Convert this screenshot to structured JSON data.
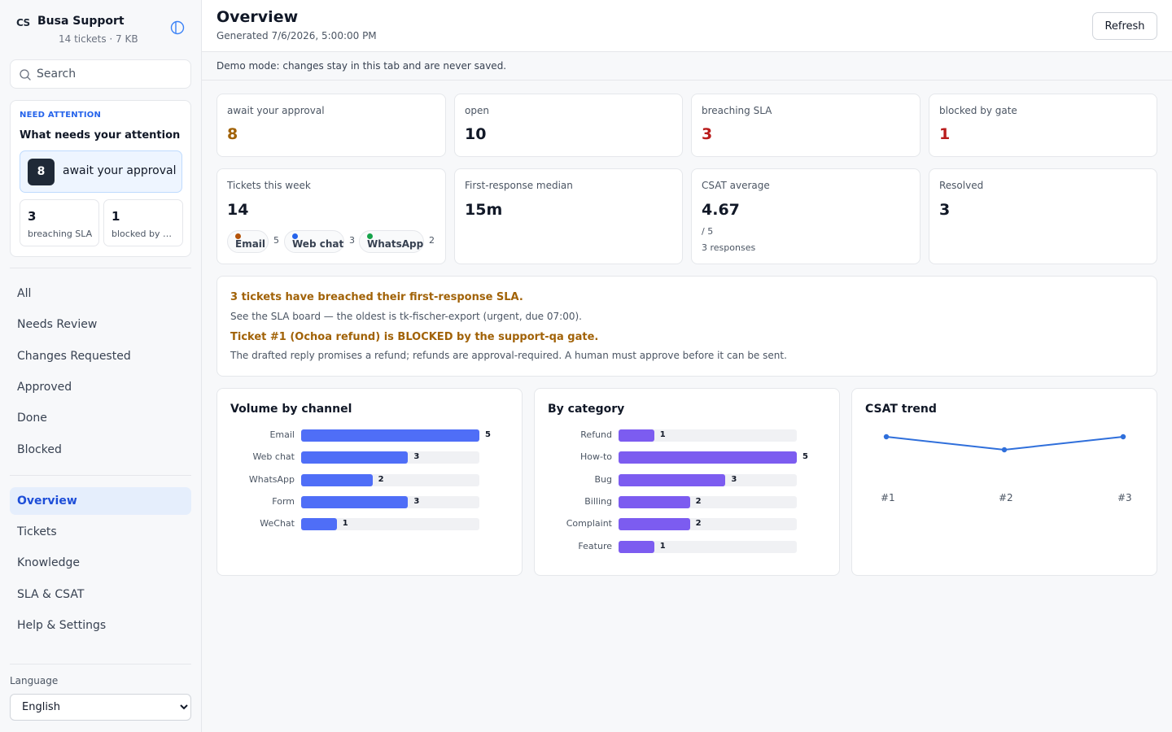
{
  "brand": {
    "logo": "CS",
    "name": "Busa Support",
    "subtitle": "14 tickets · 7 KB"
  },
  "search": {
    "placeholder": "Search"
  },
  "attention": {
    "eyebrow": "NEED ATTENTION",
    "title": "What needs your attention",
    "approval": {
      "count": "8",
      "label": "await your approval"
    },
    "minis": [
      {
        "count": "3",
        "label": "breaching SLA"
      },
      {
        "count": "1",
        "label": "blocked by gate"
      }
    ]
  },
  "nav": {
    "filters": [
      "All",
      "Needs Review",
      "Changes Requested",
      "Approved",
      "Done",
      "Blocked"
    ],
    "pages": [
      "Overview",
      "Tickets",
      "Knowledge",
      "SLA & CSAT",
      "Help & Settings"
    ],
    "active": "Overview"
  },
  "language": {
    "label": "Language",
    "value": "English"
  },
  "header": {
    "title": "Overview",
    "generated": "Generated 7/6/2026, 5:00:00 PM",
    "refresh_label": "Refresh"
  },
  "demo_notice": "Demo mode: changes stay in this tab and are never saved.",
  "stats_top": [
    {
      "label": "await your approval",
      "value": "8",
      "tone": "amber"
    },
    {
      "label": "open",
      "value": "10",
      "tone": "default"
    },
    {
      "label": "breaching SLA",
      "value": "3",
      "tone": "red"
    },
    {
      "label": "blocked by gate",
      "value": "1",
      "tone": "red"
    }
  ],
  "stats_second": {
    "tickets_week": {
      "label": "Tickets this week",
      "value": "14",
      "channels": [
        {
          "name": "Email",
          "count": "5",
          "color": "#b45309"
        },
        {
          "name": "Web chat",
          "count": "3",
          "color": "#2563eb"
        },
        {
          "name": "WhatsApp",
          "count": "2",
          "color": "#16a34a"
        }
      ]
    },
    "first_response": {
      "label": "First-response median",
      "value": "15m"
    },
    "csat": {
      "label": "CSAT average",
      "value": "4.67",
      "scale": "/ 5",
      "responses": "3 responses"
    },
    "resolved": {
      "label": "Resolved",
      "value": "3"
    }
  },
  "alerts": [
    {
      "title": "3 tickets have breached their first-response SLA.",
      "body": "See the SLA board — the oldest is tk-fischer-export (urgent, due 07:00)."
    },
    {
      "title": "Ticket #1 (Ochoa refund) is BLOCKED by the support-qa gate.",
      "body": "The drafted reply promises a refund; refunds are approval-required. A human must approve before it can be sent."
    }
  ],
  "colors": {
    "accent": "#2563eb",
    "channel_bar": "#4f6ef7",
    "category_bar": "#7c5cf0",
    "trend_line": "#2f6fdb",
    "amber": "#a16207",
    "red": "#b91c1c"
  },
  "chart_data": [
    {
      "type": "bar",
      "orientation": "horizontal",
      "title": "Volume by channel",
      "categories": [
        "Email",
        "Web chat",
        "WhatsApp",
        "Form",
        "WeChat"
      ],
      "values": [
        5,
        3,
        2,
        3,
        1
      ],
      "xlim": [
        0,
        5
      ]
    },
    {
      "type": "bar",
      "orientation": "horizontal",
      "title": "By category",
      "categories": [
        "Refund",
        "How-to",
        "Bug",
        "Billing",
        "Complaint",
        "Feature"
      ],
      "values": [
        1,
        5,
        3,
        2,
        2,
        1
      ],
      "xlim": [
        0,
        5
      ]
    },
    {
      "type": "line",
      "title": "CSAT trend",
      "x": [
        "#1",
        "#2",
        "#3"
      ],
      "values": [
        5,
        4,
        5
      ],
      "ylim": [
        4,
        5
      ]
    }
  ]
}
